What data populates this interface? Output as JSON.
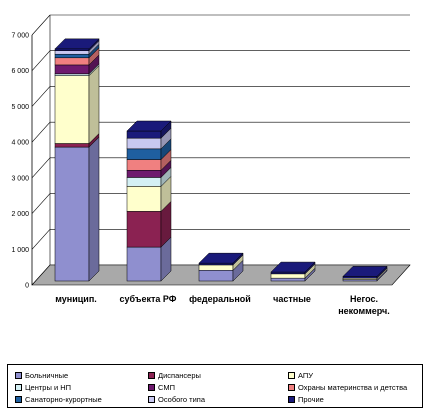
{
  "chart_data": {
    "type": "bar",
    "stacked": true,
    "three_d": true,
    "categories": [
      "муницип.",
      "субъекта РФ",
      "федеральной",
      "частные",
      "Негос.\nнекоммерч."
    ],
    "ylim": [
      0,
      7000
    ],
    "yticks": [
      "0",
      "1 000",
      "2 000",
      "3 000",
      "4 000",
      "5 000",
      "6 000",
      "7 000"
    ],
    "grid": true,
    "legend_position": "bottom",
    "series": [
      {
        "name": "Больничные",
        "color": "#8f8fcf",
        "values": [
          3750,
          950,
          300,
          80,
          40
        ]
      },
      {
        "name": "Диспансеры",
        "color": "#8b2252",
        "values": [
          100,
          1000,
          0,
          0,
          0
        ]
      },
      {
        "name": "АПУ",
        "color": "#ffffcc",
        "values": [
          1900,
          700,
          150,
          120,
          40
        ]
      },
      {
        "name": "Центры и НП",
        "color": "#d4f0f4",
        "values": [
          50,
          250,
          0,
          0,
          0
        ]
      },
      {
        "name": "СМП",
        "color": "#6e1a6e",
        "values": [
          250,
          200,
          0,
          0,
          0
        ]
      },
      {
        "name": "Охраны материнства и детства",
        "color": "#f08080",
        "values": [
          200,
          300,
          0,
          0,
          0
        ]
      },
      {
        "name": "Санаторно-курортные",
        "color": "#1f5fa0",
        "values": [
          100,
          300,
          0,
          0,
          0
        ]
      },
      {
        "name": "Особого типа",
        "color": "#c8c8f0",
        "values": [
          100,
          300,
          0,
          0,
          0
        ]
      },
      {
        "name": "Прочие",
        "color": "#1a1a7a",
        "values": [
          50,
          200,
          50,
          50,
          50
        ]
      }
    ]
  }
}
